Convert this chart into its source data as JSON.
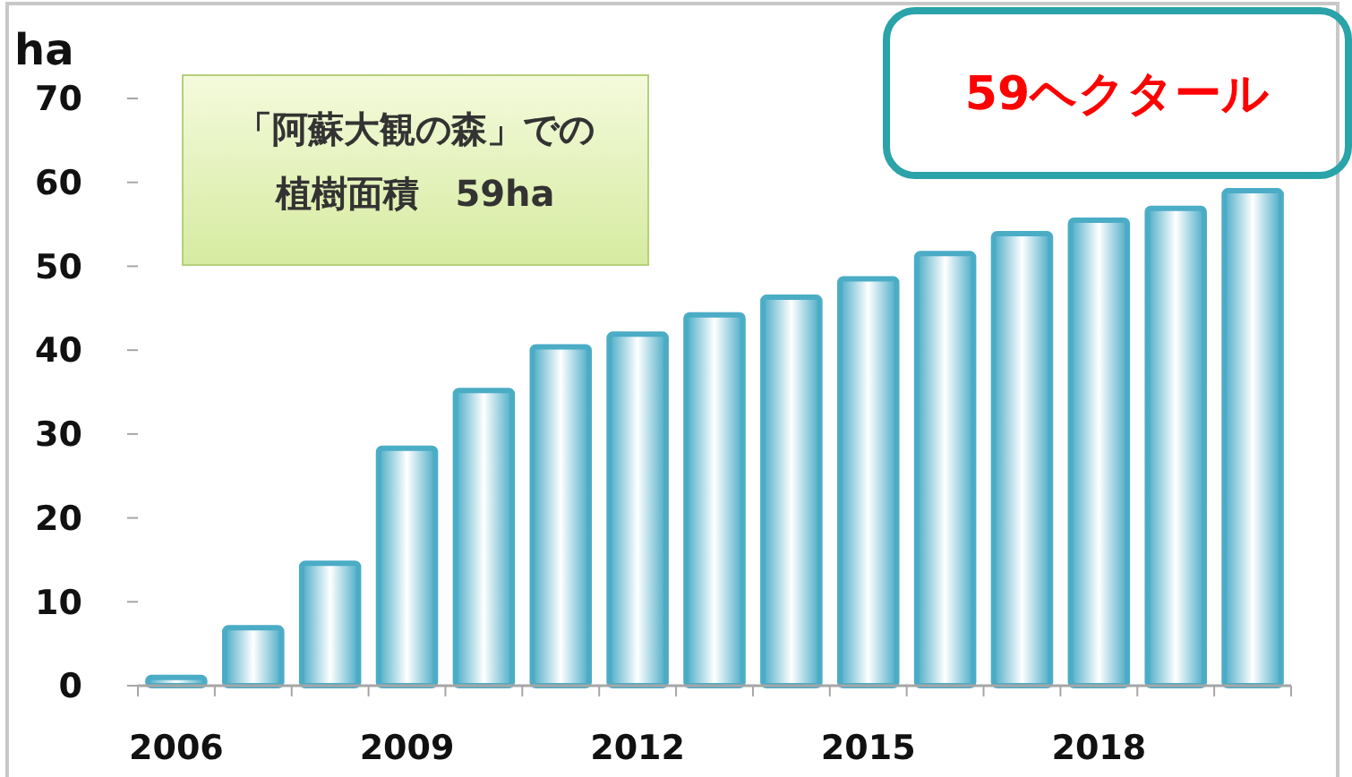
{
  "chart_data": {
    "type": "bar",
    "ylabel": "ha",
    "categories": [
      "2006",
      null,
      null,
      "2009",
      null,
      null,
      "2012",
      null,
      null,
      "2015",
      null,
      null,
      "2018",
      null,
      null
    ],
    "values": [
      1,
      6.9,
      14.6,
      28.3,
      35.2,
      40.4,
      41.9,
      44.2,
      46.3,
      48.5,
      51.5,
      53.9,
      55.5,
      56.9,
      59
    ],
    "color": "#4bacc6",
    "ylim": [
      0,
      70
    ],
    "yticks": [
      0,
      10,
      20,
      30,
      40,
      50,
      60,
      70
    ],
    "grid": false,
    "annotations": [
      "「阿蘇大観の森」での",
      "植樹面積　59ha",
      "59ヘクタール"
    ]
  }
}
